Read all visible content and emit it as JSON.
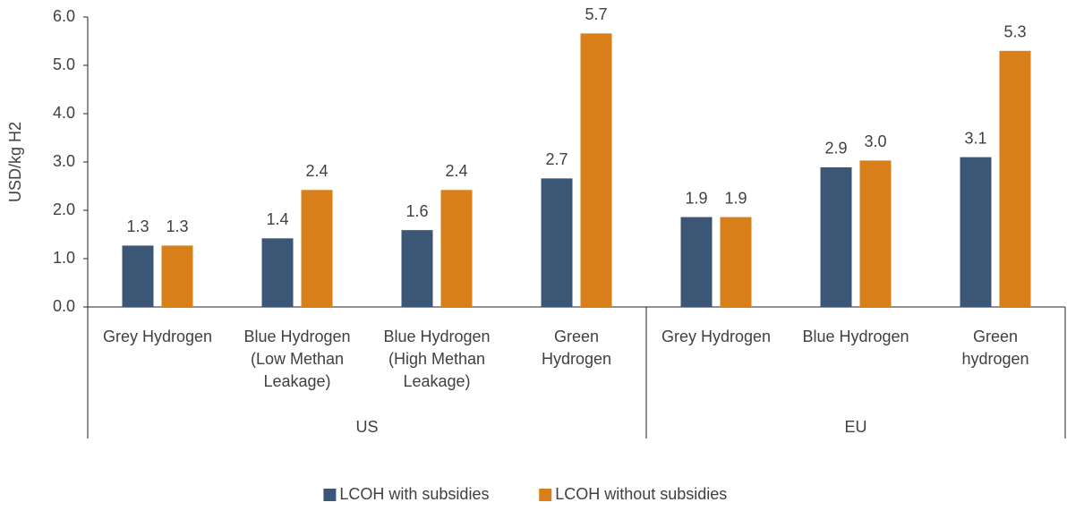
{
  "chart_data": {
    "type": "bar",
    "ylabel": "USD/kg H2",
    "groups": [
      {
        "name": "US",
        "categories": [
          [
            "Grey Hydrogen"
          ],
          [
            "Blue Hydrogen",
            "(Low Methan",
            "Leakage)"
          ],
          [
            "Blue Hydrogen",
            "(High Methan",
            "Leakage)"
          ],
          [
            "Green",
            "Hydrogen"
          ]
        ]
      },
      {
        "name": "EU",
        "categories": [
          [
            "Grey Hydrogen"
          ],
          [
            "Blue Hydrogen"
          ],
          [
            "Green",
            "hydrogen"
          ]
        ]
      }
    ],
    "series": [
      {
        "name": "LCOH with subsidies",
        "color": "#3b5775",
        "values": [
          1.27,
          1.42,
          1.59,
          2.66,
          1.86,
          2.89,
          3.1
        ],
        "value_labels": [
          "1.3",
          "1.4",
          "1.6",
          "2.7",
          "1.9",
          "2.9",
          "3.1"
        ]
      },
      {
        "name": "LCOH without subsidies",
        "color": "#d97f1a",
        "values": [
          1.27,
          2.42,
          2.42,
          5.66,
          1.86,
          3.03,
          5.3
        ],
        "value_labels": [
          "1.3",
          "2.4",
          "2.4",
          "5.7",
          "1.9",
          "3.0",
          "5.3"
        ]
      }
    ],
    "ylim": [
      0,
      6
    ],
    "yticks": [
      {
        "value": 0,
        "label": "0.0"
      },
      {
        "value": 1,
        "label": "1.0"
      },
      {
        "value": 2,
        "label": "2.0"
      },
      {
        "value": 3,
        "label": "3.0"
      },
      {
        "value": 4,
        "label": "4.0"
      },
      {
        "value": 5,
        "label": "5.0"
      },
      {
        "value": 6,
        "label": "6.0"
      }
    ],
    "legend": "bottom"
  }
}
